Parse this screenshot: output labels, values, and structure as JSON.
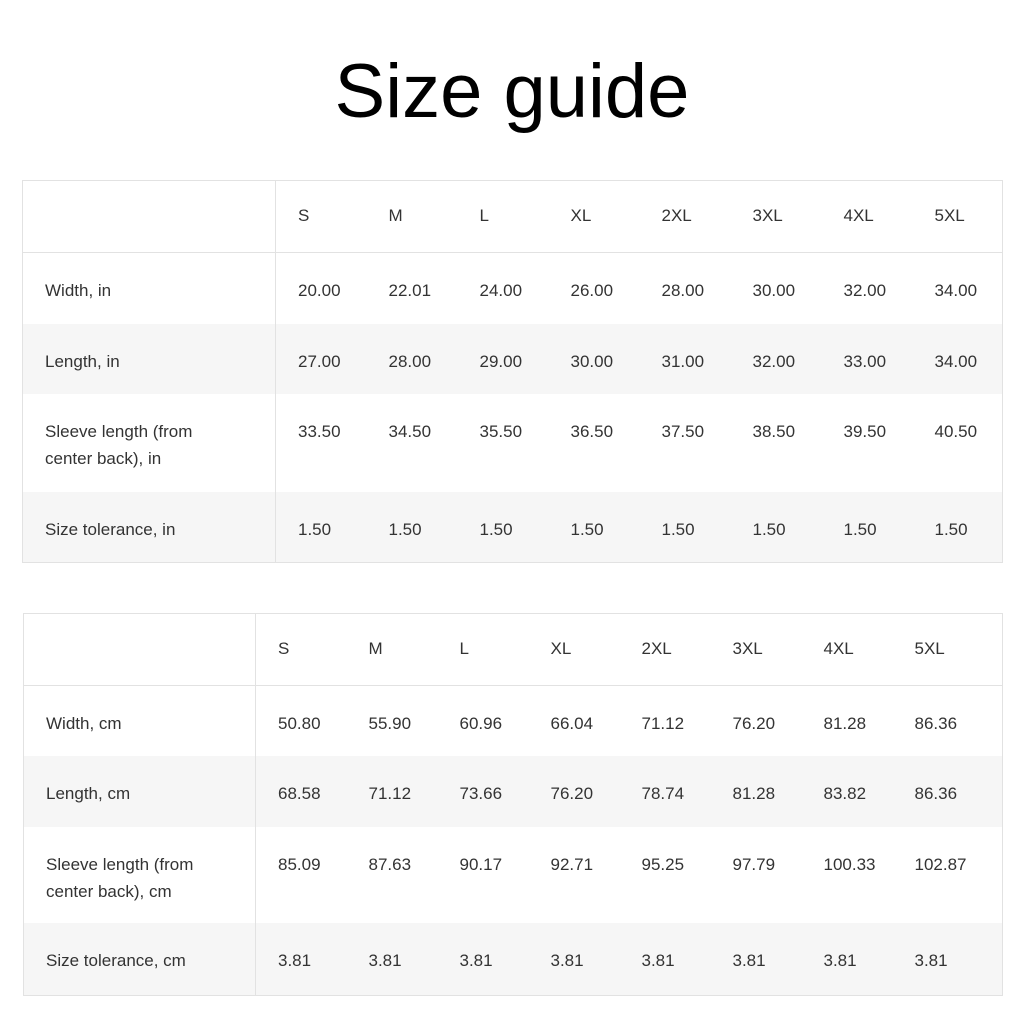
{
  "title": "Size guide",
  "tables": [
    {
      "sizes": [
        "S",
        "M",
        "L",
        "XL",
        "2XL",
        "3XL",
        "4XL",
        "5XL"
      ],
      "rows": [
        {
          "label": "Width, in",
          "values": [
            "20.00",
            "22.01",
            "24.00",
            "26.00",
            "28.00",
            "30.00",
            "32.00",
            "34.00"
          ]
        },
        {
          "label": "Length, in",
          "values": [
            "27.00",
            "28.00",
            "29.00",
            "30.00",
            "31.00",
            "32.00",
            "33.00",
            "34.00"
          ]
        },
        {
          "label": "Sleeve length (from center back), in",
          "values": [
            "33.50",
            "34.50",
            "35.50",
            "36.50",
            "37.50",
            "38.50",
            "39.50",
            "40.50"
          ]
        },
        {
          "label": "Size tolerance, in",
          "values": [
            "1.50",
            "1.50",
            "1.50",
            "1.50",
            "1.50",
            "1.50",
            "1.50",
            "1.50"
          ]
        }
      ]
    },
    {
      "sizes": [
        "S",
        "M",
        "L",
        "XL",
        "2XL",
        "3XL",
        "4XL",
        "5XL"
      ],
      "rows": [
        {
          "label": "Width, cm",
          "values": [
            "50.80",
            "55.90",
            "60.96",
            "66.04",
            "71.12",
            "76.20",
            "81.28",
            "86.36"
          ]
        },
        {
          "label": "Length, cm",
          "values": [
            "68.58",
            "71.12",
            "73.66",
            "76.20",
            "78.74",
            "81.28",
            "83.82",
            "86.36"
          ]
        },
        {
          "label": "Sleeve length (from center back), cm",
          "values": [
            "85.09",
            "87.63",
            "90.17",
            "92.71",
            "95.25",
            "97.79",
            "100.33",
            "102.87"
          ]
        },
        {
          "label": "Size tolerance, cm",
          "values": [
            "3.81",
            "3.81",
            "3.81",
            "3.81",
            "3.81",
            "3.81",
            "3.81",
            "3.81"
          ]
        }
      ]
    }
  ]
}
